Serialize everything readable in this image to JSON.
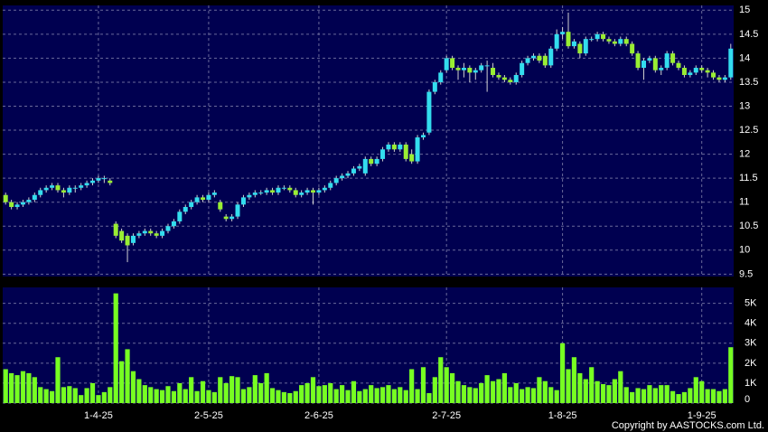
{
  "chart_data": {
    "type": "candlestick",
    "categories": [
      null,
      null,
      null,
      null,
      null,
      null,
      null,
      null,
      null,
      null,
      null,
      null,
      null,
      null,
      null,
      null,
      "1-4-25",
      null,
      null,
      null,
      null,
      null,
      null,
      null,
      null,
      null,
      null,
      null,
      null,
      null,
      null,
      null,
      null,
      null,
      null,
      "2-5-25",
      null,
      null,
      null,
      null,
      null,
      null,
      null,
      null,
      null,
      null,
      null,
      null,
      null,
      null,
      null,
      null,
      null,
      null,
      "2-6-25",
      null,
      null,
      null,
      null,
      null,
      null,
      null,
      null,
      null,
      null,
      null,
      null,
      null,
      null,
      null,
      null,
      null,
      null,
      null,
      null,
      null,
      "2-7-25",
      null,
      null,
      null,
      null,
      null,
      null,
      null,
      null,
      null,
      null,
      null,
      null,
      null,
      null,
      null,
      null,
      null,
      null,
      null,
      "1-8-25",
      null,
      null,
      null,
      null,
      null,
      null,
      null,
      null,
      null,
      null,
      null,
      null,
      null,
      null,
      null,
      null,
      null,
      null,
      null,
      null,
      null,
      null,
      null,
      "1-9-25",
      null,
      null,
      null,
      null,
      null
    ],
    "candles": [
      [
        11.15,
        11.2,
        10.95,
        11.0
      ],
      [
        11.0,
        11.05,
        10.85,
        10.9
      ],
      [
        10.9,
        11.0,
        10.85,
        10.95
      ],
      [
        10.95,
        11.05,
        10.9,
        11.0
      ],
      [
        11.0,
        11.1,
        10.95,
        11.05
      ],
      [
        11.05,
        11.2,
        11.0,
        11.15
      ],
      [
        11.15,
        11.3,
        11.1,
        11.25
      ],
      [
        11.25,
        11.35,
        11.2,
        11.3
      ],
      [
        11.3,
        11.4,
        11.25,
        11.35
      ],
      [
        11.35,
        11.4,
        11.2,
        11.25
      ],
      [
        11.25,
        11.3,
        11.1,
        11.2
      ],
      [
        11.2,
        11.35,
        11.15,
        11.3
      ],
      [
        11.3,
        11.35,
        11.2,
        11.3
      ],
      [
        11.3,
        11.4,
        11.25,
        11.35
      ],
      [
        11.35,
        11.45,
        11.3,
        11.4
      ],
      [
        11.4,
        11.5,
        11.35,
        11.45
      ],
      [
        11.45,
        11.55,
        11.4,
        11.5
      ],
      [
        11.5,
        11.55,
        11.4,
        11.5
      ],
      [
        11.45,
        11.5,
        11.35,
        11.4
      ],
      [
        10.55,
        10.6,
        10.25,
        10.3
      ],
      [
        10.4,
        10.45,
        10.15,
        10.2
      ],
      [
        10.3,
        10.35,
        9.75,
        10.1
      ],
      [
        10.15,
        10.35,
        10.1,
        10.3
      ],
      [
        10.3,
        10.4,
        10.25,
        10.35
      ],
      [
        10.35,
        10.45,
        10.3,
        10.4
      ],
      [
        10.4,
        10.45,
        10.3,
        10.35
      ],
      [
        10.35,
        10.4,
        10.25,
        10.3
      ],
      [
        10.3,
        10.45,
        10.25,
        10.4
      ],
      [
        10.4,
        10.55,
        10.35,
        10.5
      ],
      [
        10.5,
        10.65,
        10.45,
        10.6
      ],
      [
        10.6,
        10.85,
        10.55,
        10.8
      ],
      [
        10.8,
        10.95,
        10.75,
        10.9
      ],
      [
        10.9,
        11.05,
        10.85,
        11.0
      ],
      [
        11.0,
        11.15,
        10.95,
        11.1
      ],
      [
        11.1,
        11.15,
        11.0,
        11.05
      ],
      [
        11.05,
        11.2,
        11.0,
        11.15
      ],
      [
        11.15,
        11.25,
        11.1,
        11.2
      ],
      [
        11.0,
        11.05,
        10.8,
        10.85
      ],
      [
        10.7,
        10.75,
        10.6,
        10.65
      ],
      [
        10.65,
        10.75,
        10.6,
        10.7
      ],
      [
        10.7,
        11.0,
        10.65,
        10.95
      ],
      [
        10.95,
        11.15,
        10.9,
        11.1
      ],
      [
        11.1,
        11.2,
        11.05,
        11.15
      ],
      [
        11.15,
        11.25,
        11.1,
        11.2
      ],
      [
        11.2,
        11.25,
        11.15,
        11.2
      ],
      [
        11.2,
        11.3,
        11.15,
        11.25
      ],
      [
        11.25,
        11.3,
        11.15,
        11.2
      ],
      [
        11.2,
        11.35,
        11.15,
        11.3
      ],
      [
        11.3,
        11.35,
        11.25,
        11.3
      ],
      [
        11.3,
        11.35,
        11.2,
        11.25
      ],
      [
        11.25,
        11.3,
        11.1,
        11.15
      ],
      [
        11.15,
        11.25,
        11.1,
        11.2
      ],
      [
        11.2,
        11.3,
        11.15,
        11.25
      ],
      [
        11.25,
        11.3,
        10.95,
        11.2
      ],
      [
        11.2,
        11.3,
        11.15,
        11.25
      ],
      [
        11.25,
        11.35,
        11.2,
        11.3
      ],
      [
        11.3,
        11.45,
        11.25,
        11.4
      ],
      [
        11.4,
        11.55,
        11.35,
        11.5
      ],
      [
        11.5,
        11.6,
        11.45,
        11.55
      ],
      [
        11.55,
        11.65,
        11.5,
        11.6
      ],
      [
        11.6,
        11.75,
        11.55,
        11.7
      ],
      [
        11.7,
        11.8,
        11.65,
        11.75
      ],
      [
        11.6,
        11.95,
        11.55,
        11.9
      ],
      [
        11.9,
        11.95,
        11.75,
        11.8
      ],
      [
        11.8,
        11.95,
        11.75,
        11.9
      ],
      [
        11.9,
        12.15,
        11.85,
        12.1
      ],
      [
        12.1,
        12.25,
        12.05,
        12.2
      ],
      [
        12.2,
        12.25,
        12.05,
        12.1
      ],
      [
        12.1,
        12.25,
        12.05,
        12.2
      ],
      [
        12.2,
        12.25,
        11.85,
        11.9
      ],
      [
        12.0,
        12.1,
        11.8,
        11.85
      ],
      [
        11.85,
        12.4,
        11.8,
        12.35
      ],
      [
        12.35,
        12.45,
        12.3,
        12.4
      ],
      [
        12.45,
        13.35,
        12.4,
        13.3
      ],
      [
        13.3,
        13.55,
        13.25,
        13.5
      ],
      [
        13.5,
        13.75,
        13.45,
        13.7
      ],
      [
        13.75,
        14.05,
        13.7,
        14.0
      ],
      [
        14.0,
        14.05,
        13.75,
        13.8
      ],
      [
        13.8,
        13.85,
        13.55,
        13.75
      ],
      [
        13.75,
        13.9,
        13.6,
        13.8
      ],
      [
        13.8,
        13.85,
        13.5,
        13.7
      ],
      [
        13.7,
        13.8,
        13.55,
        13.75
      ],
      [
        13.75,
        13.9,
        13.7,
        13.85
      ],
      [
        13.85,
        13.95,
        13.3,
        13.85
      ],
      [
        13.8,
        13.9,
        13.6,
        13.65
      ],
      [
        13.65,
        13.7,
        13.55,
        13.6
      ],
      [
        13.6,
        13.65,
        13.5,
        13.55
      ],
      [
        13.55,
        13.6,
        13.45,
        13.5
      ],
      [
        13.5,
        13.7,
        13.45,
        13.65
      ],
      [
        13.65,
        13.95,
        13.6,
        13.9
      ],
      [
        13.9,
        14.05,
        13.85,
        14.0
      ],
      [
        14.0,
        14.1,
        13.95,
        14.05
      ],
      [
        14.05,
        14.1,
        13.9,
        13.95
      ],
      [
        14.05,
        14.1,
        13.8,
        13.85
      ],
      [
        13.85,
        14.25,
        13.8,
        14.2
      ],
      [
        14.2,
        14.6,
        14.15,
        14.5
      ],
      [
        14.5,
        14.65,
        14.4,
        14.55
      ],
      [
        14.55,
        14.95,
        14.2,
        14.25
      ],
      [
        14.25,
        14.4,
        14.2,
        14.35
      ],
      [
        14.3,
        14.35,
        14.0,
        14.1
      ],
      [
        14.1,
        14.45,
        14.05,
        14.4
      ],
      [
        14.4,
        14.45,
        14.35,
        14.4
      ],
      [
        14.4,
        14.55,
        14.35,
        14.5
      ],
      [
        14.5,
        14.55,
        14.35,
        14.4
      ],
      [
        14.4,
        14.45,
        14.3,
        14.35
      ],
      [
        14.35,
        14.4,
        14.25,
        14.3
      ],
      [
        14.3,
        14.45,
        14.25,
        14.4
      ],
      [
        14.4,
        14.45,
        14.25,
        14.3
      ],
      [
        14.3,
        14.35,
        14.05,
        14.1
      ],
      [
        14.1,
        14.15,
        13.75,
        13.8
      ],
      [
        13.8,
        14.0,
        13.55,
        13.95
      ],
      [
        13.95,
        14.05,
        13.9,
        14.0
      ],
      [
        14.0,
        14.05,
        13.7,
        13.75
      ],
      [
        13.75,
        13.85,
        13.65,
        13.8
      ],
      [
        13.8,
        14.15,
        13.75,
        14.1
      ],
      [
        14.1,
        14.15,
        13.85,
        13.9
      ],
      [
        13.9,
        13.95,
        13.75,
        13.8
      ],
      [
        13.8,
        13.85,
        13.6,
        13.65
      ],
      [
        13.65,
        13.75,
        13.6,
        13.7
      ],
      [
        13.7,
        13.85,
        13.65,
        13.8
      ],
      [
        13.8,
        13.85,
        13.7,
        13.75
      ],
      [
        13.75,
        13.8,
        13.6,
        13.7
      ],
      [
        13.7,
        13.75,
        13.55,
        13.6
      ],
      [
        13.6,
        13.65,
        13.5,
        13.55
      ],
      [
        13.55,
        13.65,
        13.5,
        13.6
      ],
      [
        13.6,
        14.3,
        13.55,
        14.2
      ]
    ],
    "volume": [
      1700,
      1500,
      1400,
      1600,
      1500,
      1300,
      800,
      700,
      600,
      2300,
      800,
      850,
      750,
      400,
      750,
      1000,
      400,
      550,
      800,
      5500,
      2100,
      2700,
      1600,
      1200,
      900,
      800,
      700,
      650,
      850,
      600,
      1000,
      700,
      1300,
      600,
      1100,
      650,
      550,
      1300,
      1000,
      1350,
      1300,
      700,
      800,
      1400,
      1000,
      1500,
      750,
      650,
      550,
      500,
      600,
      900,
      1000,
      1300,
      850,
      900,
      1000,
      700,
      900,
      650,
      1100,
      600,
      700,
      900,
      750,
      800,
      900,
      700,
      800,
      650,
      1700,
      700,
      1800,
      500,
      1300,
      2300,
      1800,
      1500,
      1100,
      900,
      800,
      750,
      1000,
      1400,
      1100,
      1200,
      1500,
      800,
      1000,
      700,
      800,
      750,
      1300,
      1100,
      800,
      650,
      3000,
      1700,
      2300,
      1500,
      1200,
      1800,
      1100,
      950,
      900,
      1200,
      1600,
      800,
      550,
      750,
      700,
      900,
      750,
      900,
      900,
      600,
      450,
      550,
      750,
      1300,
      1100,
      700,
      700,
      600,
      700,
      2800
    ],
    "up_color": "#33ddee",
    "down_color": "#99ee33",
    "volume_color": "#77ff22",
    "ylim": [
      9.45,
      15.1
    ],
    "yticks": [
      9.5,
      10,
      10.5,
      11,
      11.5,
      12,
      12.5,
      13,
      13.5,
      14,
      14.5,
      15
    ],
    "y2lim": [
      0,
      5800
    ],
    "y2ticks": [
      0,
      {
        "value": 1000,
        "label": "1K"
      },
      {
        "value": 2000,
        "label": "2K"
      },
      {
        "value": 3000,
        "label": "3K"
      },
      {
        "value": 4000,
        "label": "4K"
      },
      {
        "value": 5000,
        "label": "5K"
      }
    ],
    "grid": true,
    "copyright": "Copyright by AASTOCKS.com Ltd."
  }
}
